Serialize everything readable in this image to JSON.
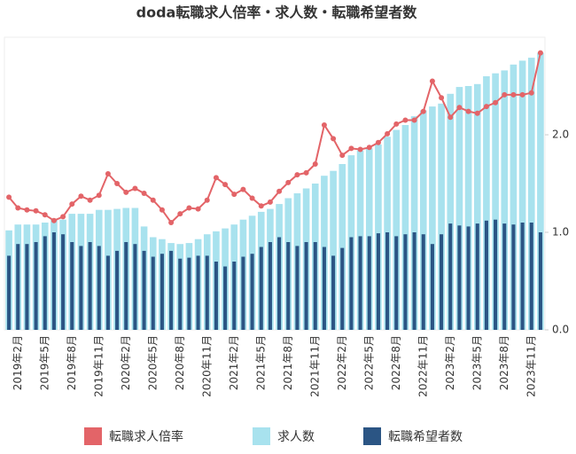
{
  "chart_data": {
    "type": "bar",
    "title": "doda転職求人倍率・求人数・転職希望者数",
    "categories": [
      null,
      "2019年2月",
      null,
      null,
      "2019年5月",
      null,
      null,
      "2019年8月",
      null,
      null,
      "2019年11月",
      null,
      null,
      "2020年2月",
      null,
      null,
      "2020年5月",
      null,
      null,
      "2020年8月",
      null,
      null,
      "2020年11月",
      null,
      null,
      "2021年2月",
      null,
      null,
      "2021年5月",
      null,
      null,
      "2021年8月",
      null,
      null,
      "2021年11月",
      null,
      null,
      "2022年2月",
      null,
      null,
      "2022年5月",
      null,
      null,
      "2022年8月",
      null,
      null,
      "2022年11月",
      null,
      null,
      "2023年2月",
      null,
      null,
      "2023年5月",
      null,
      null,
      "2023年8月",
      null,
      null,
      "2023年11月",
      null
    ],
    "series": [
      {
        "name": "転職求人倍率",
        "type": "line",
        "color": "#e36468",
        "values": [
          1.36,
          1.25,
          1.23,
          1.22,
          1.18,
          1.12,
          1.16,
          1.29,
          1.37,
          1.33,
          1.38,
          1.6,
          1.5,
          1.41,
          1.45,
          1.4,
          1.33,
          1.23,
          1.1,
          1.19,
          1.25,
          1.24,
          1.33,
          1.56,
          1.49,
          1.39,
          1.44,
          1.35,
          1.27,
          1.31,
          1.42,
          1.51,
          1.59,
          1.61,
          1.7,
          2.1,
          1.96,
          1.79,
          1.86,
          1.85,
          1.87,
          1.92,
          2.01,
          2.11,
          2.15,
          2.15,
          2.24,
          2.55,
          2.38,
          2.18,
          2.28,
          2.24,
          2.22,
          2.29,
          2.33,
          2.41,
          2.41,
          2.41,
          2.43,
          2.84
        ]
      },
      {
        "name": "求人数",
        "type": "bar",
        "color": "#a8e2ee",
        "values": [
          1.02,
          1.08,
          1.08,
          1.08,
          1.1,
          1.13,
          1.13,
          1.19,
          1.19,
          1.19,
          1.23,
          1.23,
          1.24,
          1.25,
          1.25,
          1.06,
          0.95,
          0.93,
          0.89,
          0.88,
          0.89,
          0.93,
          0.98,
          1.01,
          1.04,
          1.08,
          1.13,
          1.17,
          1.21,
          1.24,
          1.29,
          1.35,
          1.4,
          1.45,
          1.5,
          1.58,
          1.63,
          1.7,
          1.79,
          1.84,
          1.86,
          1.9,
          1.98,
          2.05,
          2.1,
          2.19,
          2.25,
          2.29,
          2.32,
          2.42,
          2.49,
          2.5,
          2.52,
          2.6,
          2.63,
          2.66,
          2.72,
          2.76,
          2.79,
          2.84
        ]
      },
      {
        "name": "転職希望者数",
        "type": "bar",
        "color": "#2b5584",
        "values": [
          0.76,
          0.88,
          0.88,
          0.9,
          0.96,
          1.0,
          0.98,
          0.9,
          0.86,
          0.9,
          0.86,
          0.76,
          0.81,
          0.9,
          0.88,
          0.81,
          0.75,
          0.78,
          0.81,
          0.73,
          0.74,
          0.76,
          0.76,
          0.7,
          0.65,
          0.7,
          0.75,
          0.78,
          0.85,
          0.9,
          0.95,
          0.9,
          0.86,
          0.9,
          0.9,
          0.85,
          0.76,
          0.84,
          0.95,
          0.96,
          0.96,
          0.99,
          1.0,
          0.96,
          0.98,
          1.0,
          0.98,
          0.88,
          0.98,
          1.09,
          1.07,
          1.06,
          1.09,
          1.12,
          1.13,
          1.09,
          1.08,
          1.1,
          1.1,
          1.0
        ]
      }
    ],
    "ylim": [
      0,
      3
    ],
    "yticks": [
      {
        "value": 0,
        "label": "0.0"
      },
      {
        "value": 1,
        "label": "1.0"
      },
      {
        "value": 2,
        "label": "2.0"
      }
    ],
    "grid": false
  }
}
